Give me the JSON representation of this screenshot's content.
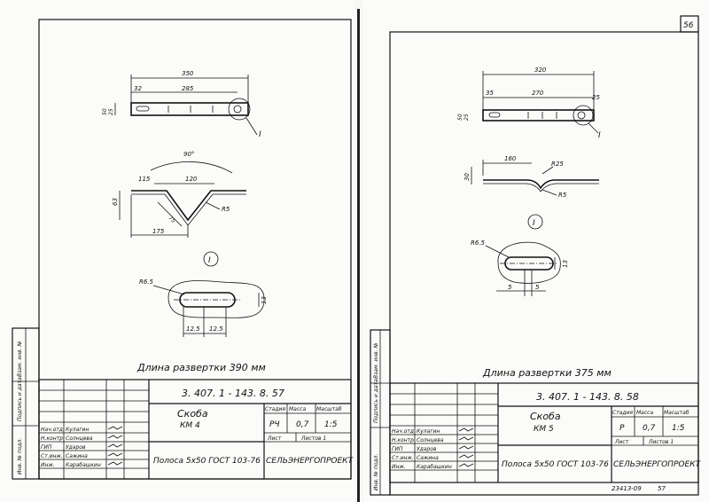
{
  "page_number": "56",
  "archive_code": "23413-09",
  "archive_page": "57",
  "left_sheet": {
    "designation": "3. 407. 1 - 143. 8. 57",
    "title": "Скоба",
    "mark": "КМ 4",
    "stage_label": "Стадия",
    "mass_label": "Масса",
    "scale_label": "Масштаб",
    "stage": "РЧ",
    "mass": "0,7",
    "scale": "1:5",
    "sheet_label": "Лист",
    "sheets_label": "Листов 1",
    "material": "Полоса 5х50 ГОСТ 103-76",
    "organization": "СЕЛЬЭНЕРГОПРОЕКТ",
    "development_length": "Длина развертки 390 мм",
    "detail_label": "I",
    "view_label": "I",
    "dims": {
      "total": "350",
      "left": "32",
      "middle": "285",
      "side1": "25",
      "side2": "50",
      "angle": "90°",
      "top_width": "120",
      "left_arm": "115",
      "height": "63",
      "diag": "75",
      "radius": "R5",
      "base": "175",
      "slot_radius": "R6.5",
      "slot_w1": "12.5",
      "slot_w2": "12.5",
      "slot_h": "13"
    }
  },
  "right_sheet": {
    "designation": "3. 407. 1 - 143. 8. 58",
    "title": "Скоба",
    "mark": "КМ 5",
    "stage_label": "Стадия",
    "mass_label": "Масса",
    "scale_label": "Масштаб",
    "stage": "Р",
    "mass": "0,7",
    "scale": "1:5",
    "sheet_label": "Лист",
    "sheets_label": "Листов 1",
    "material": "Полоса 5х50 ГОСТ 103-76",
    "organization": "СЕЛЬЭНЕРГОПРОЕКТ",
    "development_length": "Длина развертки 375 мм",
    "detail_label": "I",
    "view_label": "I",
    "dims": {
      "total": "320",
      "left": "35",
      "middle": "270",
      "right": "25",
      "side1": "25",
      "side2": "50",
      "flat": "160",
      "height": "30",
      "radius_big": "R25",
      "radius_small": "R5",
      "slot_radius": "R6.5",
      "slot_w1": "5",
      "slot_w2": "5",
      "slot_h": "13"
    }
  },
  "signature_block": {
    "rows": [
      {
        "role": "Нач.отд.",
        "name": "Кулагин"
      },
      {
        "role": "Н.контр.",
        "name": "Солнцева"
      },
      {
        "role": "ГИП",
        "name": "Ударов"
      },
      {
        "role": "Ст.инж.",
        "name": "Сажина"
      },
      {
        "role": "Инж.",
        "name": "Карабашкин"
      }
    ]
  },
  "side_stamps": [
    "Инв. № подл.",
    "Подпись и дата",
    "Взам. инв. №"
  ]
}
